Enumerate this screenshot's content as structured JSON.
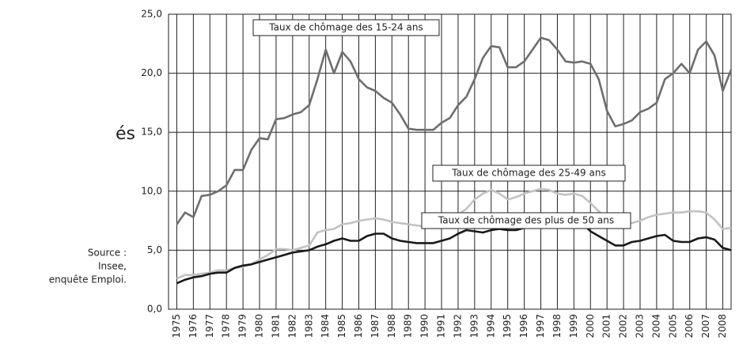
{
  "chart_data": {
    "type": "line",
    "annotations": {
      "partial_title": "és",
      "source": [
        "Source :",
        "Insee,",
        "enquête Emploi."
      ]
    },
    "x": [
      1975,
      1975.5,
      1976,
      1976.5,
      1977,
      1977.5,
      1978,
      1978.5,
      1979,
      1979.5,
      1980,
      1980.5,
      1981,
      1981.5,
      1982,
      1982.5,
      1983,
      1983.5,
      1984,
      1984.5,
      1985,
      1985.5,
      1986,
      1986.5,
      1987,
      1987.5,
      1988,
      1988.5,
      1989,
      1989.5,
      1990,
      1990.5,
      1991,
      1991.5,
      1992,
      1992.5,
      1993,
      1993.5,
      1994,
      1994.5,
      1995,
      1995.5,
      1996,
      1996.5,
      1997,
      1997.5,
      1998,
      1998.5,
      1999,
      1999.5,
      2000,
      2000.5,
      2001,
      2001.5,
      2002,
      2002.5,
      2003,
      2003.5,
      2004,
      2004.5,
      2005,
      2005.5,
      2006,
      2006.5,
      2007,
      2007.5,
      2008,
      2008.5
    ],
    "series": [
      {
        "name": "Taux de chômage des 15-24 ans",
        "color": "#6e6e6e",
        "values": [
          7.2,
          8.2,
          7.8,
          9.6,
          9.7,
          10.0,
          10.5,
          11.8,
          11.8,
          13.5,
          14.5,
          14.4,
          16.1,
          16.2,
          16.5,
          16.7,
          17.3,
          19.5,
          22.0,
          20.0,
          21.8,
          21.0,
          19.5,
          18.8,
          18.5,
          17.9,
          17.5,
          16.5,
          15.3,
          15.2,
          15.2,
          15.2,
          15.8,
          16.2,
          17.3,
          18.0,
          19.5,
          21.3,
          22.3,
          22.2,
          20.5,
          20.5,
          21.0,
          22.0,
          23.0,
          22.8,
          22.0,
          21.0,
          20.9,
          21.0,
          20.8,
          19.5,
          16.8,
          15.5,
          15.7,
          16.0,
          16.7,
          17.0,
          17.5,
          19.5,
          20.0,
          20.8,
          20.0,
          22.0,
          22.7,
          21.5,
          18.5,
          20.3
        ]
      },
      {
        "name": "Taux de chômage des 25-49 ans",
        "color": "#c2c2c2",
        "values": [
          2.6,
          2.9,
          2.9,
          3.0,
          3.1,
          3.3,
          3.3,
          3.5,
          3.6,
          3.8,
          4.2,
          4.6,
          5.1,
          5.1,
          5.0,
          5.2,
          5.4,
          6.5,
          6.7,
          6.8,
          7.2,
          7.3,
          7.5,
          7.6,
          7.7,
          7.6,
          7.4,
          7.3,
          7.2,
          7.1,
          7.0,
          7.1,
          7.3,
          7.5,
          8.0,
          8.5,
          9.3,
          9.8,
          10.1,
          9.8,
          9.3,
          9.5,
          9.8,
          10.0,
          10.2,
          10.1,
          9.8,
          9.7,
          9.8,
          9.6,
          9.0,
          8.3,
          7.7,
          7.4,
          7.3,
          7.3,
          7.5,
          7.8,
          8.0,
          8.1,
          8.2,
          8.2,
          8.3,
          8.3,
          8.2,
          7.6,
          6.8,
          6.9
        ]
      },
      {
        "name": "Taux de chômage des plus de 50 ans",
        "color": "#1a1a1a",
        "values": [
          2.2,
          2.5,
          2.7,
          2.8,
          3.0,
          3.1,
          3.1,
          3.5,
          3.7,
          3.8,
          4.0,
          4.2,
          4.4,
          4.6,
          4.8,
          4.9,
          5.0,
          5.3,
          5.5,
          5.8,
          6.0,
          5.8,
          5.8,
          6.2,
          6.4,
          6.4,
          6.0,
          5.8,
          5.7,
          5.6,
          5.6,
          5.6,
          5.8,
          6.0,
          6.4,
          6.7,
          6.6,
          6.5,
          6.7,
          6.8,
          6.7,
          6.7,
          6.9,
          7.2,
          7.4,
          7.4,
          7.4,
          7.5,
          7.6,
          7.3,
          6.6,
          6.2,
          5.8,
          5.4,
          5.4,
          5.7,
          5.8,
          6.0,
          6.2,
          6.3,
          5.8,
          5.7,
          5.7,
          6.0,
          6.1,
          5.9,
          5.2,
          5.0
        ]
      }
    ],
    "xlim": [
      1974.5,
      2008.5
    ],
    "xticks": [
      1975,
      1976,
      1977,
      1978,
      1979,
      1980,
      1981,
      1982,
      1983,
      1984,
      1985,
      1986,
      1987,
      1988,
      1989,
      1990,
      1991,
      1992,
      1993,
      1994,
      1995,
      1996,
      1997,
      1998,
      1999,
      2000,
      2001,
      2002,
      2003,
      2004,
      2005,
      2006,
      2007,
      2008
    ],
    "ylim": [
      0,
      25
    ],
    "yticks": [
      {
        "value": 0,
        "label": "0,0"
      },
      {
        "value": 5,
        "label": "5,0"
      },
      {
        "value": 10,
        "label": "10,0"
      },
      {
        "value": 15,
        "label": "15,0"
      },
      {
        "value": 20,
        "label": "20,0"
      },
      {
        "value": 25,
        "label": "25,0"
      }
    ],
    "grid": true
  }
}
